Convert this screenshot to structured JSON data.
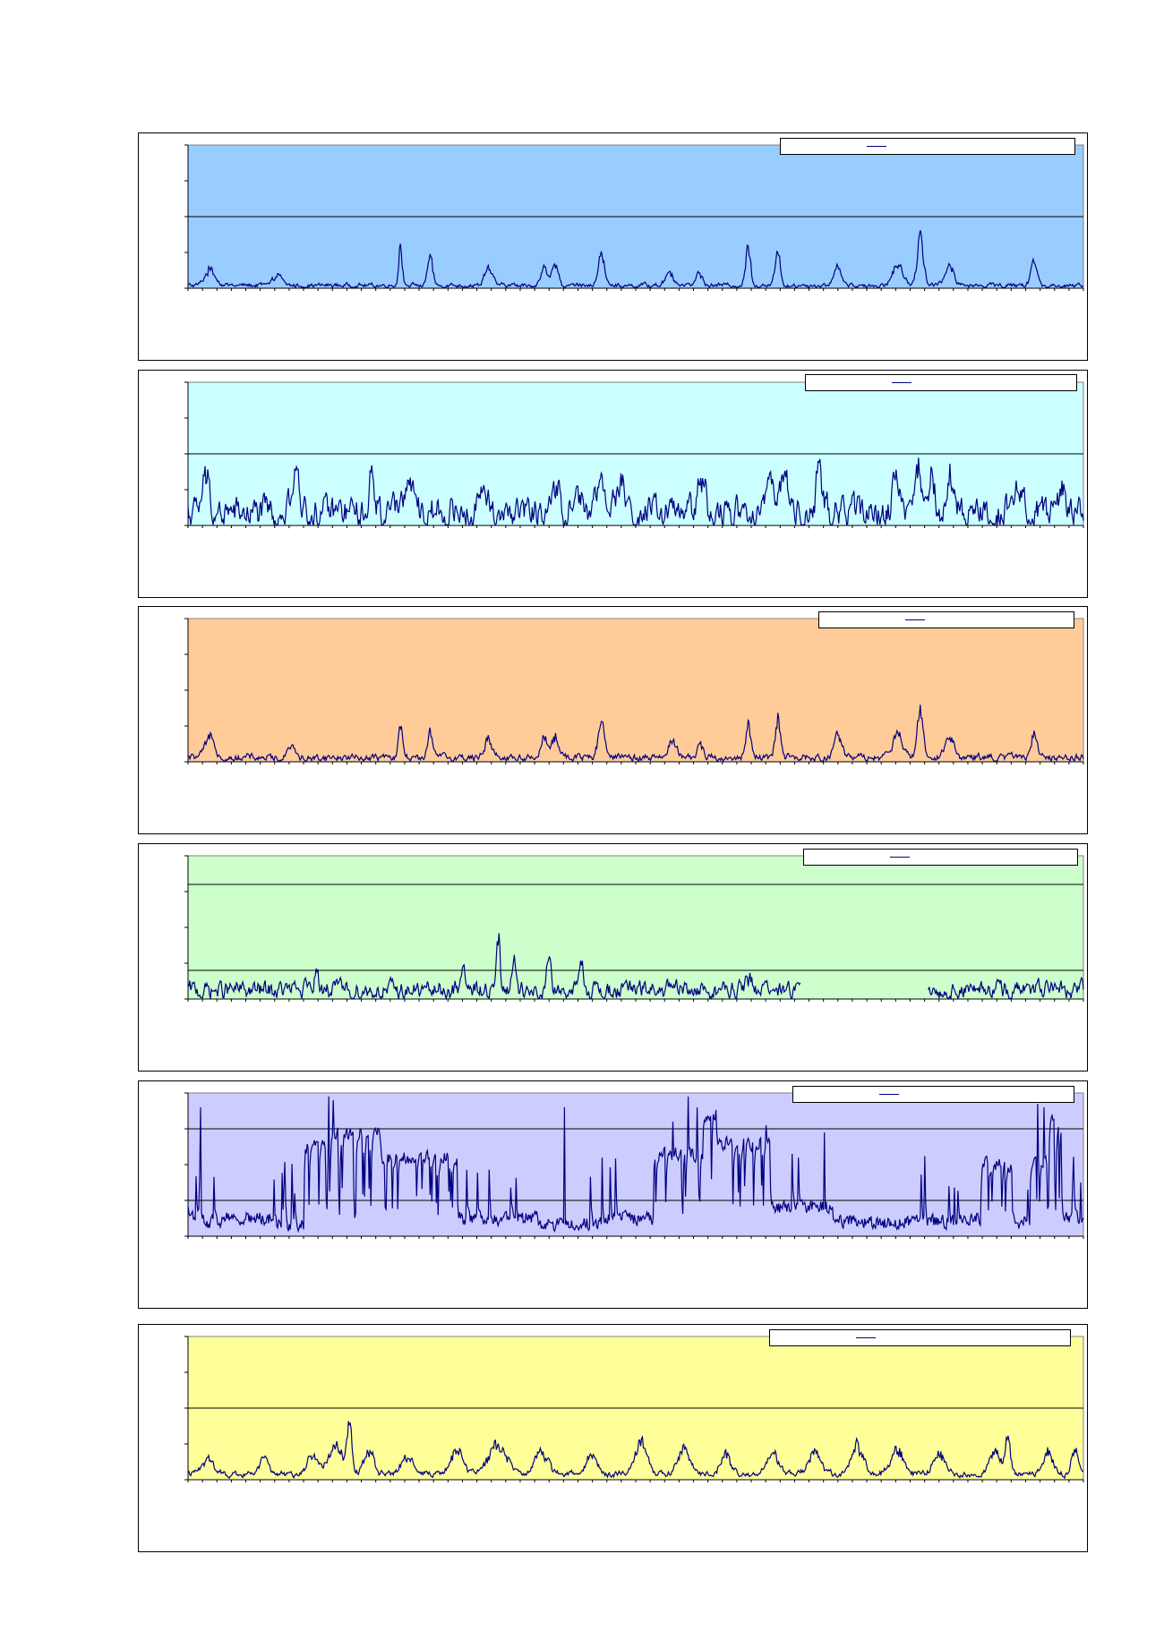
{
  "chart_data": [
    {
      "type": "line",
      "fill": "#99ccff",
      "gridlines": [
        0.5
      ],
      "ylim": [
        0,
        4
      ],
      "x": [
        0,
        1000
      ],
      "n": 1000,
      "series": [
        {
          "color": "#00007f",
          "base": 0.08,
          "noise": 0.05,
          "peaks": [
            [
              25,
              0.45,
              8
            ],
            [
              100,
              0.3,
              6
            ],
            [
              237,
              0.95,
              3
            ],
            [
              270,
              0.75,
              4
            ],
            [
              335,
              0.5,
              6
            ],
            [
              398,
              0.45,
              6
            ],
            [
              410,
              0.5,
              5
            ],
            [
              461,
              0.85,
              5
            ],
            [
              537,
              0.4,
              6
            ],
            [
              570,
              0.35,
              5
            ],
            [
              625,
              1.0,
              4
            ],
            [
              658,
              0.95,
              4
            ],
            [
              725,
              0.5,
              6
            ],
            [
              792,
              0.55,
              8
            ],
            [
              817,
              1.3,
              5
            ],
            [
              850,
              0.55,
              7
            ],
            [
              944,
              0.65,
              5
            ]
          ]
        }
      ]
    },
    {
      "type": "line",
      "fill": "#ccffff",
      "gridlines": [
        0.5
      ],
      "ylim": [
        0,
        4
      ],
      "x": [
        0,
        1000
      ],
      "n": 1000,
      "series": [
        {
          "color": "#00007f",
          "base": 0.35,
          "noise": 0.35,
          "peaks": [
            [
              20,
              0.9,
              6
            ],
            [
              120,
              1.0,
              5
            ],
            [
              205,
              1.0,
              5
            ],
            [
              245,
              0.9,
              6
            ],
            [
              330,
              0.8,
              6
            ],
            [
              412,
              0.8,
              6
            ],
            [
              435,
              1.0,
              6
            ],
            [
              460,
              1.2,
              5
            ],
            [
              482,
              1.1,
              5
            ],
            [
              573,
              1.2,
              5
            ],
            [
              650,
              1.0,
              6
            ],
            [
              665,
              1.0,
              6
            ],
            [
              705,
              1.0,
              6
            ],
            [
              790,
              1.1,
              6
            ],
            [
              815,
              1.3,
              5
            ],
            [
              829,
              1.25,
              5
            ],
            [
              850,
              1.0,
              6
            ],
            [
              925,
              0.8,
              7
            ],
            [
              975,
              0.7,
              6
            ]
          ]
        }
      ]
    },
    {
      "type": "line",
      "fill": "#ffcc99",
      "gridlines": [],
      "ylim": [
        0,
        4
      ],
      "x": [
        0,
        1000
      ],
      "n": 1000,
      "series": [
        {
          "color": "#00007f",
          "base": 0.12,
          "noise": 0.08,
          "peaks": [
            [
              25,
              0.5,
              8
            ],
            [
              115,
              0.35,
              6
            ],
            [
              237,
              1.0,
              3
            ],
            [
              270,
              0.75,
              4
            ],
            [
              335,
              0.55,
              6
            ],
            [
              398,
              0.5,
              6
            ],
            [
              410,
              0.55,
              5
            ],
            [
              461,
              0.9,
              5
            ],
            [
              540,
              0.45,
              6
            ],
            [
              572,
              0.4,
              5
            ],
            [
              625,
              1.0,
              4
            ],
            [
              658,
              0.95,
              4
            ],
            [
              725,
              0.55,
              6
            ],
            [
              792,
              0.6,
              8
            ],
            [
              817,
              1.35,
              5
            ],
            [
              850,
              0.6,
              7
            ],
            [
              944,
              0.7,
              5
            ]
          ]
        }
      ]
    },
    {
      "type": "line",
      "fill": "#ccffcc",
      "gridlines": [
        0.2,
        0.8
      ],
      "ylim": [
        0,
        5
      ],
      "x": [
        0,
        1000
      ],
      "n": 1000,
      "series": [
        {
          "color": "#00007f",
          "base": 0.3,
          "noise": 0.25,
          "gap": [
            684,
            826
          ],
          "peaks": [
            [
              143,
              0.75,
              3
            ],
            [
              308,
              0.8,
              3
            ],
            [
              346,
              1.7,
              3
            ],
            [
              364,
              1.2,
              3
            ],
            [
              403,
              1.3,
              3
            ],
            [
              440,
              0.7,
              4
            ],
            [
              625,
              0.5,
              5
            ]
          ]
        }
      ]
    },
    {
      "type": "line",
      "fill": "#ccccff",
      "gridlines": [
        0.25,
        0.75
      ],
      "ylim": [
        0,
        4
      ],
      "x": [
        0,
        1000
      ],
      "n": 1000,
      "series": [
        {
          "color": "#00007f",
          "mode": "switching",
          "low": 0.4,
          "high": 2.6,
          "noise": 0.25,
          "bands": [
            [
              0,
              15,
              0.6
            ],
            [
              15,
              40,
              0.4
            ],
            [
              40,
              95,
              0.5
            ],
            [
              95,
              130,
              0.35
            ],
            [
              130,
              160,
              2.5
            ],
            [
              160,
              215,
              2.9
            ],
            [
              215,
              300,
              2.2
            ],
            [
              300,
              390,
              0.5
            ],
            [
              390,
              465,
              0.35
            ],
            [
              465,
              520,
              0.5
            ],
            [
              520,
              575,
              2.3
            ],
            [
              575,
              590,
              3.4
            ],
            [
              590,
              650,
              2.6
            ],
            [
              650,
              720,
              0.8
            ],
            [
              720,
              870,
              0.4
            ],
            [
              870,
              885,
              0.5
            ],
            [
              885,
              920,
              2.0
            ],
            [
              920,
              940,
              0.4
            ],
            [
              940,
              960,
              2.0
            ],
            [
              960,
              975,
              3.2
            ],
            [
              975,
              1000,
              0.5
            ]
          ],
          "spikes": [
            [
              14,
              3.6
            ],
            [
              157,
              3.9
            ],
            [
              162,
              3.8
            ],
            [
              420,
              3.6
            ],
            [
              541,
              3.2
            ],
            [
              558,
              3.9
            ],
            [
              568,
              3.6
            ],
            [
              645,
              3.1
            ],
            [
              710,
              2.9
            ],
            [
              948,
              3.7
            ],
            [
              955,
              3.6
            ],
            [
              996,
              1.5
            ]
          ]
        }
      ]
    },
    {
      "type": "line",
      "fill": "#ffff99",
      "gridlines": [
        0.5
      ],
      "ylim": [
        0,
        4
      ],
      "x": [
        0,
        1000
      ],
      "n": 1000,
      "series": [
        {
          "color": "#00007f",
          "base": 0.15,
          "noise": 0.07,
          "peaks": [
            [
              22,
              0.5,
              8
            ],
            [
              85,
              0.5,
              8
            ],
            [
              140,
              0.55,
              9
            ],
            [
              165,
              0.85,
              10
            ],
            [
              180,
              1.25,
              4
            ],
            [
              202,
              0.6,
              8
            ],
            [
              245,
              0.55,
              9
            ],
            [
              300,
              0.65,
              10
            ],
            [
              345,
              0.8,
              14
            ],
            [
              395,
              0.6,
              10
            ],
            [
              450,
              0.55,
              9
            ],
            [
              505,
              0.95,
              9
            ],
            [
              553,
              0.7,
              9
            ],
            [
              600,
              0.55,
              8
            ],
            [
              652,
              0.6,
              9
            ],
            [
              699,
              0.7,
              9
            ],
            [
              747,
              0.8,
              9
            ],
            [
              791,
              0.7,
              10
            ],
            [
              838,
              0.55,
              9
            ],
            [
              900,
              0.65,
              8
            ],
            [
              915,
              1.1,
              4
            ],
            [
              960,
              0.6,
              8
            ],
            [
              990,
              0.75,
              5
            ]
          ]
        }
      ]
    }
  ]
}
